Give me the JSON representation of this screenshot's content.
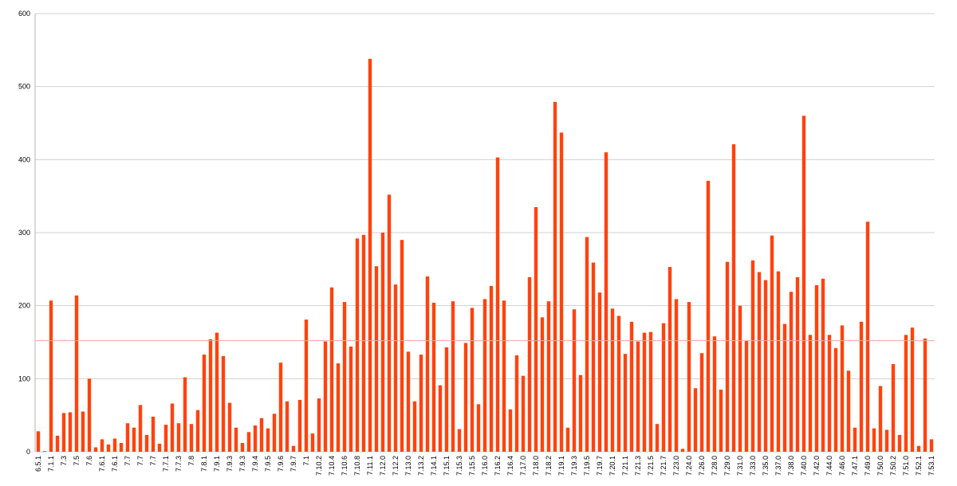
{
  "chart_data": {
    "type": "bar",
    "categories": [
      "6.5.1",
      null,
      "7.1.1",
      null,
      "7.3",
      null,
      "7.5",
      null,
      "7.6",
      null,
      "7.6.1",
      null,
      "7.6.1",
      null,
      "7.7",
      null,
      "7.7",
      null,
      "7.7",
      null,
      "7.7.1",
      null,
      "7.7.3",
      null,
      "7.8",
      null,
      "7.8.1",
      null,
      "7.9.1",
      null,
      "7.9.3",
      null,
      "7.9.3",
      null,
      "7.9.4",
      null,
      "7.9.5",
      null,
      "7.9.6",
      null,
      "7.9.7",
      null,
      "7.1",
      null,
      "7.10.2",
      null,
      "7.10.4",
      null,
      "7.10.6",
      null,
      "7.10.8",
      null,
      "7.11.1",
      null,
      "7.12.0",
      null,
      "7.12.2",
      null,
      "7.13.0",
      null,
      "7.13.2",
      null,
      "7.14.1",
      null,
      "7.15.1",
      null,
      "7.15.3",
      null,
      "7.15.5",
      null,
      "7.16.0",
      null,
      "7.16.2",
      null,
      "7.16.4",
      null,
      "7.17.0",
      null,
      "7.18.0",
      null,
      "7.18.2",
      null,
      "7.19.1",
      null,
      "7.19.3",
      null,
      "7.19.5",
      null,
      "7.19.7",
      null,
      "7.20.1",
      null,
      "7.21.1",
      null,
      "7.21.3",
      null,
      "7.21.5",
      null,
      "7.21.7",
      null,
      "7.23.0",
      null,
      "7.24.0",
      null,
      "7.26.0",
      null,
      "7.28.0",
      null,
      "7.29.0",
      null,
      "7.31.0",
      null,
      "7.33.0",
      null,
      "7.35.0",
      null,
      "7.37.0",
      null,
      "7.38.0",
      null,
      "7.40.0",
      null,
      "7.42.0",
      null,
      "7.44.0",
      null,
      "7.46.0",
      null,
      "7.47.1",
      null,
      "7.49.0",
      null,
      "7.50.0",
      null,
      "7.50.2",
      null,
      "7.51.0",
      null,
      "7.52.1",
      null,
      "7.53.1"
    ],
    "values": [
      28,
      1,
      207,
      22,
      53,
      54,
      214,
      55,
      100,
      6,
      17,
      10,
      18,
      12,
      39,
      33,
      64,
      23,
      48,
      11,
      37,
      66,
      39,
      102,
      38,
      57,
      133,
      154,
      163,
      131,
      67,
      33,
      12,
      27,
      36,
      46,
      32,
      52,
      122,
      69,
      8,
      71,
      181,
      25,
      73,
      151,
      225,
      121,
      205,
      144,
      292,
      297,
      538,
      254,
      300,
      352,
      229,
      290,
      137,
      69,
      133,
      240,
      204,
      91,
      143,
      206,
      31,
      149,
      197,
      65,
      209,
      227,
      403,
      207,
      58,
      132,
      104,
      239,
      335,
      184,
      206,
      479,
      437,
      33,
      195,
      105,
      294,
      259,
      218,
      410,
      196,
      186,
      134,
      178,
      151,
      163,
      164,
      38,
      176,
      253,
      209,
      4,
      205,
      87,
      135,
      371,
      158,
      85,
      260,
      421,
      200,
      152,
      262,
      246,
      235,
      296,
      247,
      175,
      219,
      239,
      460,
      160,
      228,
      237,
      160,
      142,
      173,
      111,
      33,
      178,
      315,
      32,
      90,
      30,
      120,
      23,
      160,
      170,
      8,
      155,
      17
    ],
    "color": "#ff420e",
    "reference_line": 152,
    "reference_color": "#f4a6a0",
    "ylim": [
      0,
      600
    ],
    "yticks": [
      0,
      100,
      200,
      300,
      400,
      500,
      600
    ],
    "grid": true
  }
}
